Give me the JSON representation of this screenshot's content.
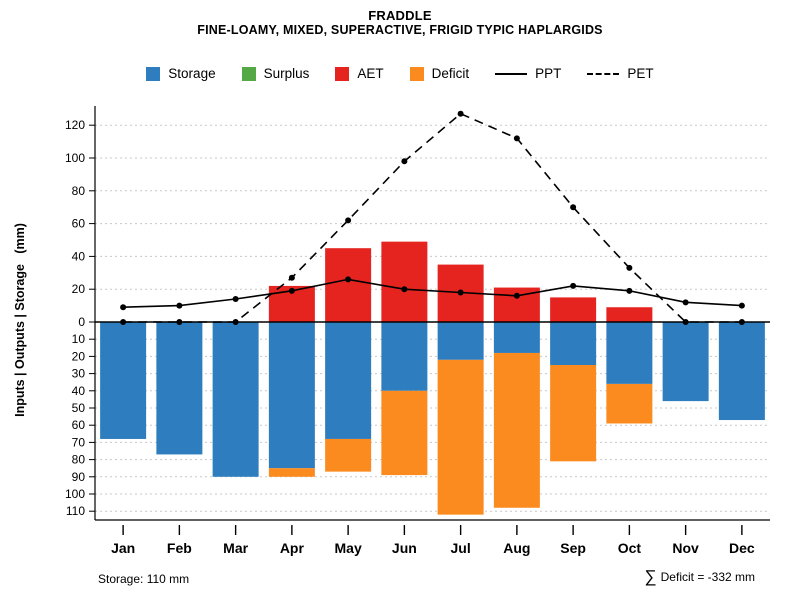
{
  "title": "FRADDLE",
  "subtitle": "FINE-LOAMY, MIXED, SUPERACTIVE, FRIGID TYPIC HAPLARGIDS",
  "legend": [
    {
      "label": "Storage",
      "swatch": "square",
      "color": "#2e7ebf"
    },
    {
      "label": "Surplus",
      "swatch": "square",
      "color": "#55a846"
    },
    {
      "label": "AET",
      "swatch": "square",
      "color": "#e52420"
    },
    {
      "label": "Deficit",
      "swatch": "square",
      "color": "#fb8b1e"
    },
    {
      "label": "PPT",
      "swatch": "line-solid",
      "color": "#000000"
    },
    {
      "label": "PET",
      "swatch": "line-dashed",
      "color": "#000000"
    }
  ],
  "footer": {
    "storage_label": "Storage: 110 mm",
    "sigma": "∑",
    "deficit_label": " Deficit = -332 mm"
  },
  "chart_data": {
    "type": "bar",
    "note": "Monthly soil water balance: bars above zero = AET (red) / Surplus (green); bars below zero = Storage (blue) with Deficit (orange) stacked beneath; lines = PPT (solid, dots) and PET (dashed, dots). Lower axis is positive-down in mm.",
    "categories": [
      "Jan",
      "Feb",
      "Mar",
      "Apr",
      "May",
      "Jun",
      "Jul",
      "Aug",
      "Sep",
      "Oct",
      "Nov",
      "Dec"
    ],
    "series": [
      {
        "name": "Storage",
        "type": "bar-down",
        "color": "#2e7ebf",
        "values": [
          68,
          77,
          90,
          85,
          68,
          40,
          22,
          18,
          25,
          36,
          46,
          57
        ]
      },
      {
        "name": "Surplus",
        "type": "bar-up",
        "color": "#55a846",
        "values": [
          0,
          0,
          0,
          0,
          0,
          0,
          0,
          0,
          0,
          0,
          0,
          0
        ]
      },
      {
        "name": "AET",
        "type": "bar-up",
        "color": "#e52420",
        "values": [
          0,
          0,
          0,
          22,
          45,
          49,
          35,
          21,
          15,
          9,
          0,
          0
        ]
      },
      {
        "name": "Deficit",
        "type": "bar-down-stacked",
        "color": "#fb8b1e",
        "values": [
          0,
          0,
          0,
          5,
          19,
          49,
          90,
          90,
          56,
          23,
          0,
          0
        ]
      },
      {
        "name": "PPT",
        "type": "line",
        "style": "solid",
        "color": "#000000",
        "values": [
          9,
          10,
          14,
          19,
          26,
          20,
          18,
          16,
          22,
          19,
          12,
          10
        ]
      },
      {
        "name": "PET",
        "type": "line",
        "style": "dashed",
        "color": "#000000",
        "values": [
          0,
          0,
          0,
          27,
          62,
          98,
          127,
          112,
          70,
          33,
          0,
          0
        ]
      }
    ],
    "ylabel": "Inputs | Outputs | Storage   (mm)",
    "y_up_ticks": [
      0,
      20,
      40,
      60,
      80,
      100,
      120
    ],
    "y_down_ticks": [
      10,
      20,
      30,
      40,
      50,
      60,
      70,
      80,
      90,
      100,
      110
    ],
    "ylim_up": [
      0,
      130
    ],
    "ylim_down": [
      0,
      115
    ],
    "grid": true,
    "legend_position": "top"
  }
}
